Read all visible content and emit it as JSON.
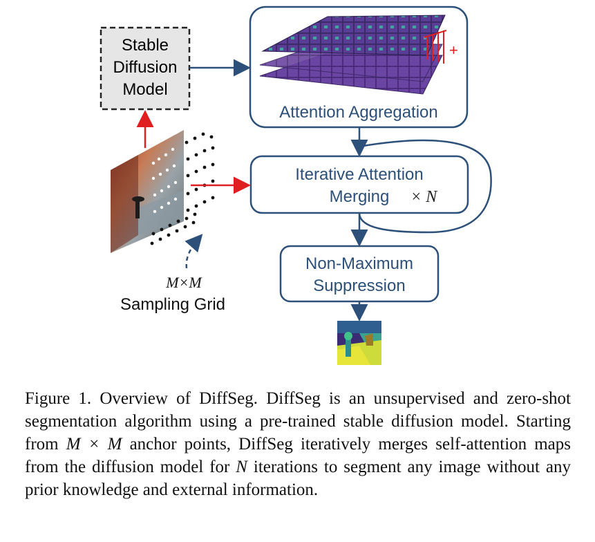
{
  "diagram": {
    "stable_diffusion_label": [
      "Stable",
      "Diffusion",
      "Model"
    ],
    "attention_aggregation_label": "Attention Aggregation",
    "plus_sign": "+",
    "iterative_merging_label": [
      "Iterative Attention",
      "Merging"
    ],
    "iterations_label": "× N",
    "nms_label": [
      "Non-Maximum",
      "Suppression"
    ],
    "grid_size_label": "M×M",
    "sampling_grid_label": "Sampling Grid",
    "colors": {
      "box_stroke": "#2c5079",
      "arrow_blue": "#2c5079",
      "arrow_red": "#e02020",
      "sd_fill": "#e6e6e6",
      "attention_purple": "#5b3a8c"
    }
  },
  "caption": {
    "figure_label": "Figure 1.",
    "title": "Overview of DiffSeg.",
    "text_1": "DiffSeg is an unsupervised and zero-shot segmentation algorithm using a pre-trained stable diffusion model. Starting from",
    "math_1": "M × M",
    "text_2": "anchor points, DiffSeg iteratively merges self-attention maps from the diffusion model for",
    "math_2": "N",
    "text_3": "iterations to segment any image without any prior knowledge and external information."
  }
}
